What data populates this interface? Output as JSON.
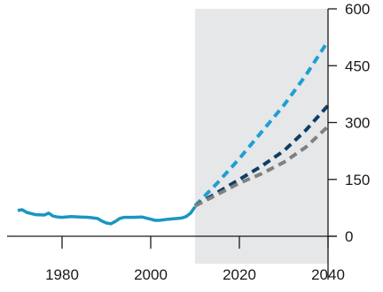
{
  "chart_data": {
    "type": "line",
    "title": "",
    "xlabel": "",
    "ylabel": "",
    "xlim": [
      1965,
      2040
    ],
    "ylim": [
      0,
      600
    ],
    "x_ticks": [
      1980,
      2000,
      2020,
      2040
    ],
    "y_ticks": [
      0,
      150,
      300,
      450,
      600
    ],
    "grid": false,
    "legend": "none",
    "shaded_region": {
      "x_from": 2010,
      "x_to": 2040,
      "color": "#e6e7e8"
    },
    "series": [
      {
        "style": "solid",
        "color": "#1a96c0",
        "x": [
          1970,
          1971,
          1972,
          1974,
          1976,
          1977,
          1978,
          1979,
          1980,
          1982,
          1984,
          1986,
          1988,
          1989,
          1990,
          1991,
          1992,
          1993,
          1994,
          1996,
          1998,
          2000,
          2001,
          2002,
          2004,
          2006,
          2007,
          2008,
          2009,
          2010
        ],
        "y": [
          68,
          70,
          63,
          57,
          56,
          61,
          53,
          51,
          50,
          52,
          51,
          50,
          47,
          40,
          35,
          33,
          39,
          47,
          50,
          50,
          51,
          45,
          42,
          42,
          45,
          47,
          48,
          52,
          61,
          78
        ]
      },
      {
        "style": "dashed",
        "color": "#1e9fd2",
        "x": [
          2010,
          2015,
          2020,
          2025,
          2030,
          2035,
          2040
        ],
        "y": [
          80,
          140,
          205,
          275,
          345,
          425,
          515
        ]
      },
      {
        "style": "dashed",
        "color": "#0e3d66",
        "x": [
          2010,
          2015,
          2020,
          2025,
          2030,
          2035,
          2040
        ],
        "y": [
          80,
          115,
          150,
          185,
          225,
          280,
          345
        ]
      },
      {
        "style": "dashed",
        "color": "#808080",
        "x": [
          2010,
          2015,
          2020,
          2025,
          2030,
          2035,
          2040
        ],
        "y": [
          80,
          110,
          140,
          165,
          195,
          235,
          290
        ]
      }
    ]
  }
}
